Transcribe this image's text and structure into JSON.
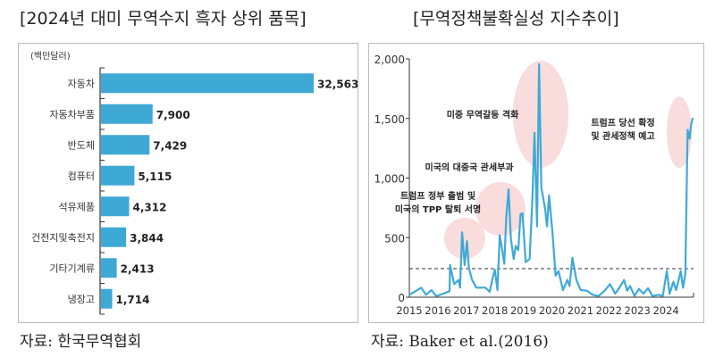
{
  "chart_data": [
    {
      "type": "bar",
      "orientation": "horizontal",
      "title": "[2024년 대미 무역수지 흑자 상위 품목]",
      "unit": "(백만달러)",
      "categories": [
        "자동차",
        "자동차부품",
        "반도체",
        "컴퓨터",
        "석유제품",
        "건전지및축전지",
        "기타기계류",
        "냉장고"
      ],
      "values": [
        32563,
        7900,
        7429,
        5115,
        4312,
        3844,
        2413,
        1714
      ],
      "value_labels": [
        "32,563",
        "7,900",
        "7,429",
        "5,115",
        "4,312",
        "3,844",
        "2,413",
        "1,714"
      ],
      "bar_color": "#3fa9d6",
      "source": "자료: 한국무역협회"
    },
    {
      "type": "line",
      "title": "[무역정책불확실성  지수추이]",
      "ylim": [
        0,
        2000
      ],
      "xlim": [
        2015,
        2025
      ],
      "yticks": [
        "0",
        "500",
        "1,000",
        "1,500",
        "2,000"
      ],
      "ytick_values": [
        0,
        500,
        1000,
        1500,
        2000
      ],
      "xticks": [
        "2015",
        "2016",
        "2017",
        "2018",
        "2019",
        "2020",
        "2021",
        "2022",
        "2023",
        "2024"
      ],
      "line_color": "#3fa9d6",
      "reference_line": {
        "value": 240,
        "style": "dashed"
      },
      "x": [
        2015.0,
        2015.42,
        2015.58,
        2015.78,
        2015.94,
        2016.2,
        2016.41,
        2016.43,
        2016.57,
        2016.73,
        2016.78,
        2016.85,
        2016.94,
        2017.02,
        2017.09,
        2017.2,
        2017.35,
        2017.67,
        2017.82,
        2017.93,
        2018.0,
        2018.09,
        2018.17,
        2018.24,
        2018.33,
        2018.4,
        2018.48,
        2018.56,
        2018.66,
        2018.73,
        2018.82,
        2018.9,
        2018.97,
        2019.08,
        2019.22,
        2019.32,
        2019.39,
        2019.48,
        2019.55,
        2019.63,
        2019.76,
        2019.83,
        2019.9,
        2020.02,
        2020.13,
        2020.23,
        2020.39,
        2020.54,
        2020.62,
        2020.72,
        2020.86,
        2021.01,
        2021.22,
        2021.43,
        2021.64,
        2021.85,
        2022.04,
        2022.22,
        2022.37,
        2022.53,
        2022.64,
        2022.74,
        2022.9,
        2023.05,
        2023.21,
        2023.37,
        2023.53,
        2023.73,
        2023.89,
        2024.03,
        2024.13,
        2024.26,
        2024.36,
        2024.52,
        2024.6,
        2024.68,
        2024.76,
        2024.83,
        2024.88,
        2024.94
      ],
      "y": [
        20,
        80,
        20,
        60,
        10,
        30,
        50,
        270,
        110,
        145,
        80,
        545,
        270,
        470,
        245,
        145,
        80,
        80,
        45,
        170,
        230,
        60,
        520,
        420,
        280,
        670,
        905,
        495,
        320,
        430,
        395,
        695,
        705,
        295,
        320,
        845,
        1380,
        595,
        1955,
        920,
        745,
        595,
        855,
        545,
        180,
        220,
        60,
        145,
        95,
        330,
        145,
        60,
        55,
        20,
        10,
        55,
        110,
        30,
        80,
        145,
        55,
        95,
        10,
        70,
        30,
        75,
        10,
        20,
        10,
        220,
        30,
        130,
        60,
        220,
        80,
        195,
        1405,
        1330,
        1445,
        1505
      ],
      "annotations": [
        {
          "text": [
            "트럼프 정부 출범 및",
            "미국의 TPP 탈퇴 서명"
          ],
          "x": 2017.0,
          "y": 500
        },
        {
          "text": [
            "미국의 대중국 관세부과"
          ],
          "x": 2018.6,
          "y": 800
        },
        {
          "text": [
            "미중 무역갈등 격화"
          ],
          "x": 2019.6,
          "y": 1400
        },
        {
          "text": [
            "트럼프 당선 확정",
            "및 관세정책 예고"
          ],
          "x": 2024.7,
          "y": 1400
        }
      ],
      "highlight_color": "#f9dcdc",
      "source": "자료: Baker et al.(2016)"
    }
  ]
}
